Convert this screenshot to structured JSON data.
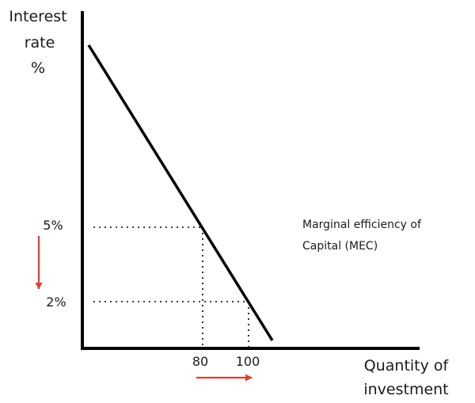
{
  "y_axis_label": {
    "line1": "Interest",
    "line2": "rate",
    "line3": "%"
  },
  "x_axis_label": {
    "line1": "Quantity of",
    "line2": "investment"
  },
  "curve_label": {
    "line1": "Marginal efficiency of",
    "line2": "Capital (MEC)"
  },
  "y_ticks": [
    "5%",
    "2%"
  ],
  "x_ticks": [
    "80",
    "100"
  ],
  "arrows": {
    "rate_change": "down",
    "quantity_change": "right"
  },
  "colors": {
    "axis": "#000000",
    "curve": "#000000",
    "guide": "#000000",
    "arrow": "#d9422c"
  }
}
